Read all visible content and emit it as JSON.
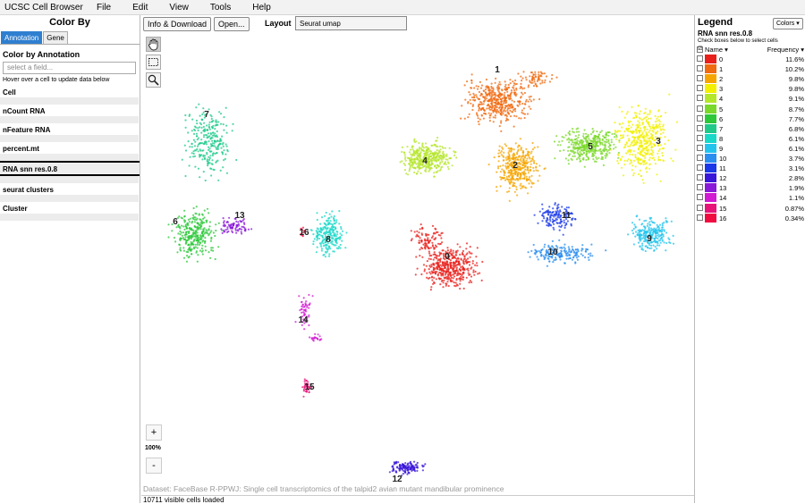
{
  "app": {
    "title": "UCSC Cell Browser",
    "menus": [
      "File",
      "Edit",
      "View",
      "Tools",
      "Help"
    ]
  },
  "left": {
    "header": "Color By",
    "tabs": [
      "Annotation",
      "Gene"
    ],
    "section": "Color by Annotation",
    "search_placeholder": "select a field...",
    "hover_hint": "Hover over a cell to update data below",
    "fields": [
      "Cell",
      "nCount RNA",
      "nFeature RNA",
      "percent.mt",
      "RNA snn res.0.8",
      "seurat clusters",
      "Cluster"
    ]
  },
  "toolbar": {
    "info": "Info & Download",
    "open": "Open...",
    "layout_label": "Layout",
    "layout_value": "Seurat umap"
  },
  "plot": {
    "zoom_in": "+",
    "zoom_out": "-",
    "zoom_level": "100%",
    "dataset": "Dataset: FaceBase R-PPWJ: Single cell transcriptomics of the talpid2 avian mutant mandibular prominence",
    "cluster_labels": [
      "0",
      "1",
      "2",
      "3",
      "4",
      "5",
      "6",
      "7",
      "8",
      "9",
      "10",
      "11",
      "12",
      "13",
      "14",
      "15",
      "16"
    ]
  },
  "status": "10711 visible cells loaded",
  "legend": {
    "header": "Legend",
    "colors_button": "Colors",
    "metadata": "RNA snn res.0.8",
    "hint": "Check boxes below to select cells",
    "col_name": "Name",
    "col_freq": "Frequency",
    "items": [
      {
        "name": "0",
        "freq": "11.6%",
        "color": "#e8201c"
      },
      {
        "name": "1",
        "freq": "10.2%",
        "color": "#f06a10"
      },
      {
        "name": "2",
        "freq": "9.8%",
        "color": "#f6a500"
      },
      {
        "name": "3",
        "freq": "9.8%",
        "color": "#f2f000"
      },
      {
        "name": "4",
        "freq": "9.1%",
        "color": "#b4e62a"
      },
      {
        "name": "5",
        "freq": "8.7%",
        "color": "#7ad82a"
      },
      {
        "name": "6",
        "freq": "7.7%",
        "color": "#2cc83a"
      },
      {
        "name": "7",
        "freq": "6.8%",
        "color": "#1ec98a"
      },
      {
        "name": "8",
        "freq": "6.1%",
        "color": "#18d8c8"
      },
      {
        "name": "9",
        "freq": "6.1%",
        "color": "#22c4ee"
      },
      {
        "name": "10",
        "freq": "3.7%",
        "color": "#2a8ef0"
      },
      {
        "name": "11",
        "freq": "3.1%",
        "color": "#1a38e8"
      },
      {
        "name": "12",
        "freq": "2.8%",
        "color": "#3a16d8"
      },
      {
        "name": "13",
        "freq": "1.9%",
        "color": "#8a18d8"
      },
      {
        "name": "14",
        "freq": "1.1%",
        "color": "#d21ad2"
      },
      {
        "name": "15",
        "freq": "0.87%",
        "color": "#e8147a"
      },
      {
        "name": "16",
        "freq": "0.34%",
        "color": "#f00c40"
      }
    ]
  }
}
